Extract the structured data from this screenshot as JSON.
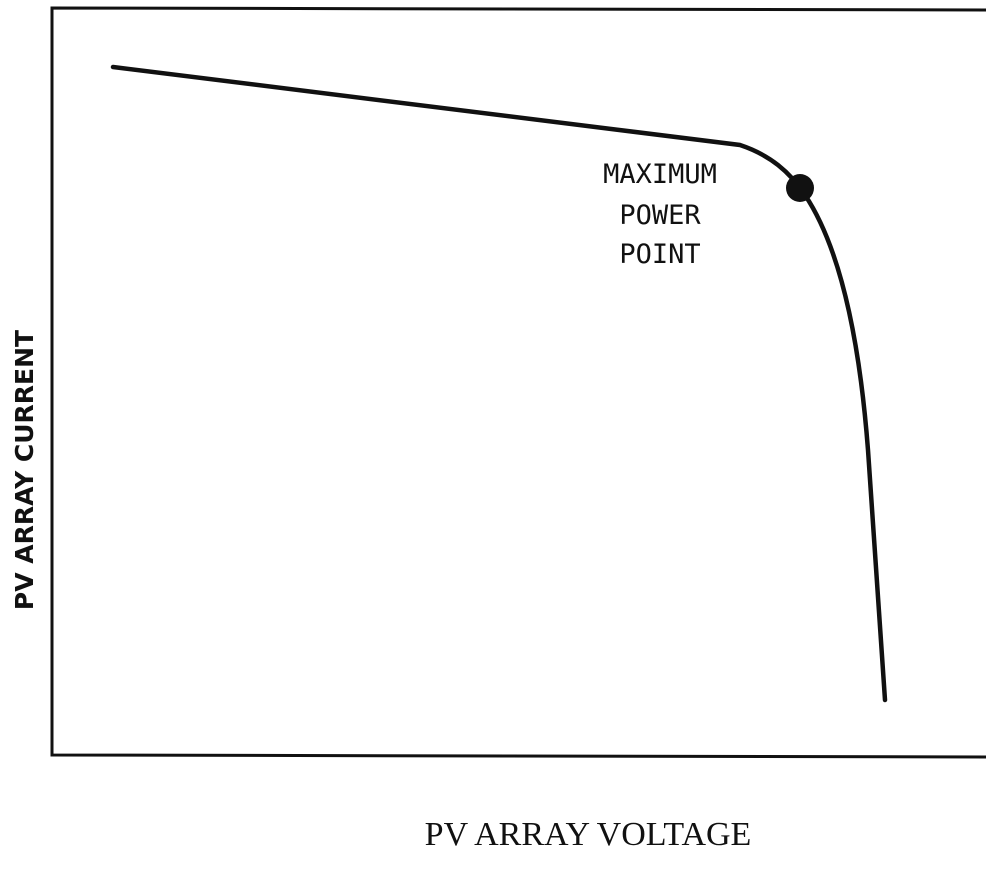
{
  "chart_data": {
    "type": "line",
    "x_label": "PV ARRAY VOLTAGE",
    "y_label": "PV ARRAY CURRENT",
    "annotation": [
      "MAXIMUM",
      "POWER",
      "POINT"
    ]
  }
}
